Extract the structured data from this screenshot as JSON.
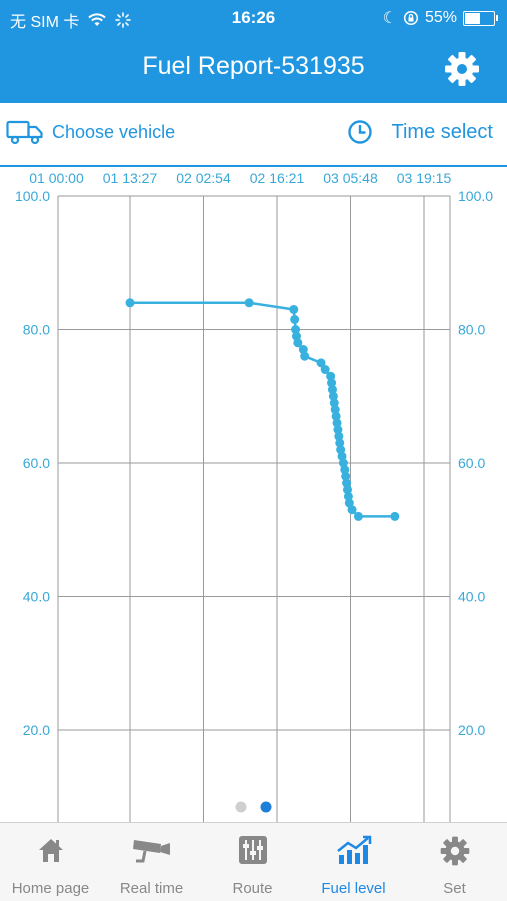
{
  "status_bar": {
    "carrier": "无 SIM 卡",
    "time": "16:26",
    "battery": "55%",
    "battery_level": 0.55
  },
  "header": {
    "title": "Fuel Report-531935",
    "settings_icon": "gear-icon"
  },
  "toolbar": {
    "choose_vehicle": "Choose vehicle",
    "time_select": "Time select",
    "truck_icon": "truck-icon",
    "clock_icon": "clock-icon"
  },
  "colors": {
    "accent": "#2196e0",
    "line": "#38b1df",
    "axis_text": "#38a8d8",
    "grid": "#9a9a9a"
  },
  "chart_data": {
    "type": "line",
    "x_tick_labels": [
      "01 00:00",
      "01 13:27",
      "02 02:54",
      "02 16:21",
      "03 05:48",
      "03 19:15"
    ],
    "y_tick_labels": [
      "100.0",
      "80.0",
      "60.0",
      "40.0",
      "20.0"
    ],
    "ylim": [
      0,
      100
    ],
    "grid": true,
    "series": [
      {
        "values": [
          {
            "x": "01 13:27",
            "y": 84
          },
          {
            "x": "02 11:15",
            "y": 84
          },
          {
            "x": "02 19:25",
            "y": 83
          },
          {
            "x": "02 19:35",
            "y": 81.5
          },
          {
            "x": "02 19:45",
            "y": 80
          },
          {
            "x": "02 19:55",
            "y": 79
          },
          {
            "x": "02 20:10",
            "y": 78
          },
          {
            "x": "02 21:10",
            "y": 77
          },
          {
            "x": "02 21:25",
            "y": 76
          },
          {
            "x": "03 00:25",
            "y": 75
          },
          {
            "x": "03 01:10",
            "y": 74
          },
          {
            "x": "03 02:10",
            "y": 73
          },
          {
            "x": "03 02:20",
            "y": 72
          },
          {
            "x": "03 02:30",
            "y": 71
          },
          {
            "x": "03 02:40",
            "y": 70
          },
          {
            "x": "03 02:50",
            "y": 69
          },
          {
            "x": "03 03:00",
            "y": 68
          },
          {
            "x": "03 03:10",
            "y": 67
          },
          {
            "x": "03 03:20",
            "y": 66
          },
          {
            "x": "03 03:30",
            "y": 65
          },
          {
            "x": "03 03:40",
            "y": 64
          },
          {
            "x": "03 03:50",
            "y": 63
          },
          {
            "x": "03 04:00",
            "y": 62
          },
          {
            "x": "03 04:15",
            "y": 61
          },
          {
            "x": "03 04:30",
            "y": 60
          },
          {
            "x": "03 04:45",
            "y": 59
          },
          {
            "x": "03 04:55",
            "y": 58
          },
          {
            "x": "03 05:05",
            "y": 57
          },
          {
            "x": "03 05:15",
            "y": 56
          },
          {
            "x": "03 05:25",
            "y": 55
          },
          {
            "x": "03 05:35",
            "y": 54
          },
          {
            "x": "03 06:05",
            "y": 53
          },
          {
            "x": "03 07:15",
            "y": 52
          },
          {
            "x": "03 13:55",
            "y": 52
          }
        ]
      }
    ]
  },
  "pager": {
    "count": 2,
    "active_index": 1
  },
  "tabs": [
    {
      "label": "Home page",
      "icon": "home-icon",
      "active": false
    },
    {
      "label": "Real time",
      "icon": "camera-icon",
      "active": false
    },
    {
      "label": "Route",
      "icon": "route-icon",
      "active": false
    },
    {
      "label": "Fuel level",
      "icon": "chart-icon",
      "active": true
    },
    {
      "label": "Set",
      "icon": "gear-icon",
      "active": false
    }
  ]
}
